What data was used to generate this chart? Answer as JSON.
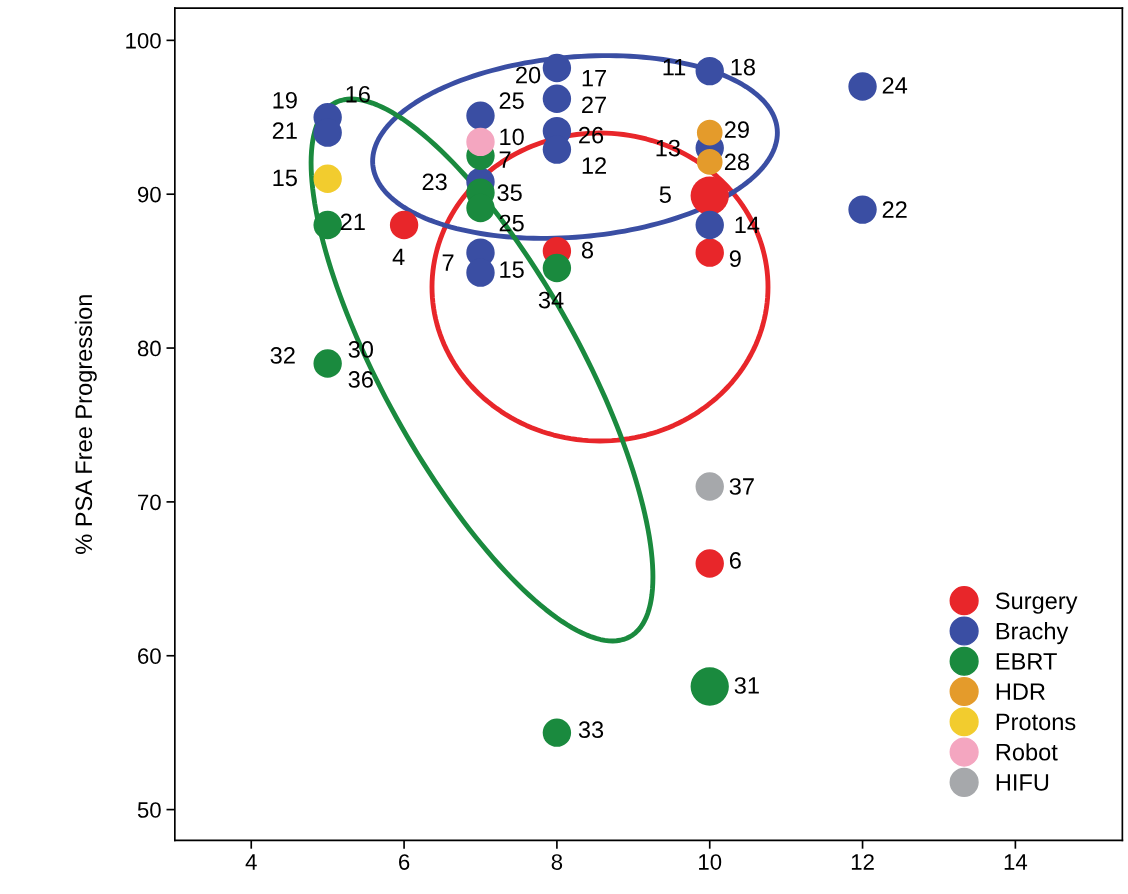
{
  "chart_data": {
    "type": "bubble",
    "ylabel": "% PSA Free Progression",
    "xlim": [
      3.0,
      15.4
    ],
    "ylim": [
      48,
      102.1
    ],
    "xticks": [
      4,
      6,
      8,
      10,
      12,
      14
    ],
    "yticks": [
      50,
      60,
      70,
      80,
      90,
      100
    ],
    "grid": false,
    "legend": "bottom right",
    "marker": "circle",
    "series": [
      {
        "name": "Surgery",
        "color": "#e8262a",
        "x": [
          6,
          8,
          10,
          10,
          10
        ],
        "values": [
          88,
          86.3,
          89.9,
          86.2,
          66
        ],
        "sizes": [
          0.55,
          0.55,
          1,
          0.55,
          0.55
        ]
      },
      {
        "name": "Brachy",
        "color": "#3a4ea3",
        "x": [
          5,
          5,
          7,
          7,
          7,
          7,
          8,
          8,
          8,
          8,
          10,
          10,
          10,
          12,
          12
        ],
        "values": [
          95,
          94,
          95.1,
          90.8,
          86.2,
          84.9,
          98.2,
          96.2,
          94.1,
          92.9,
          98,
          93,
          88,
          97,
          89
        ],
        "sizes": [
          0.55,
          0.55,
          0.55,
          0.55,
          0.55,
          0.55,
          0.55,
          0.55,
          0.55,
          0.55,
          0.55,
          0.55,
          0.55,
          0.55,
          0.55
        ]
      },
      {
        "name": "EBRT",
        "color": "#1a8a3e",
        "x": [
          5,
          5,
          7,
          7,
          7,
          8,
          10,
          8
        ],
        "values": [
          88,
          79,
          92.5,
          90.1,
          89.1,
          85.2,
          58,
          55
        ],
        "sizes": [
          0.55,
          0.55,
          0.55,
          0.55,
          0.55,
          0.55,
          1,
          0.55
        ]
      },
      {
        "name": "HDR",
        "color": "#e49b2b",
        "x": [
          10,
          10
        ],
        "values": [
          94,
          92.1
        ],
        "sizes": [
          0.45,
          0.45
        ]
      },
      {
        "name": "Protons",
        "color": "#f2cc2e",
        "x": [
          5
        ],
        "values": [
          91
        ],
        "sizes": [
          0.55
        ]
      },
      {
        "name": "Robot",
        "color": "#f4a6c0",
        "x": [
          7
        ],
        "values": [
          93.4
        ],
        "sizes": [
          0.55
        ]
      },
      {
        "name": "HIFU",
        "color": "#a6a8ab",
        "x": [
          10
        ],
        "values": [
          71
        ],
        "sizes": [
          0.55
        ]
      }
    ],
    "annotations": [
      {
        "text": "19",
        "x": 5,
        "y": 95
      },
      {
        "text": "16",
        "x": 5,
        "y": 95
      },
      {
        "text": "21",
        "x": 5,
        "y": 94
      },
      {
        "text": "15",
        "x": 5,
        "y": 91
      },
      {
        "text": "21",
        "x": 5,
        "y": 88
      },
      {
        "text": "4",
        "x": 6,
        "y": 88
      },
      {
        "text": "32",
        "x": 5,
        "y": 79
      },
      {
        "text": "30",
        "x": 5,
        "y": 79
      },
      {
        "text": "36",
        "x": 5,
        "y": 79
      },
      {
        "text": "25",
        "x": 7,
        "y": 95.1
      },
      {
        "text": "10",
        "x": 7,
        "y": 93.4
      },
      {
        "text": "7",
        "x": 7,
        "y": 92.5
      },
      {
        "text": "23",
        "x": 7,
        "y": 90.8
      },
      {
        "text": "35",
        "x": 7,
        "y": 90.1
      },
      {
        "text": "25",
        "x": 7,
        "y": 89.1
      },
      {
        "text": "7",
        "x": 7,
        "y": 86.2
      },
      {
        "text": "15",
        "x": 7,
        "y": 84.9
      },
      {
        "text": "8",
        "x": 8,
        "y": 86.3
      },
      {
        "text": "34",
        "x": 8,
        "y": 85.2
      },
      {
        "text": "20",
        "x": 8,
        "y": 98.2
      },
      {
        "text": "17",
        "x": 8,
        "y": 98.2
      },
      {
        "text": "27",
        "x": 8,
        "y": 96.2
      },
      {
        "text": "26",
        "x": 8,
        "y": 94.1
      },
      {
        "text": "12",
        "x": 8,
        "y": 92.9
      },
      {
        "text": "11",
        "x": 10,
        "y": 98
      },
      {
        "text": "18",
        "x": 10,
        "y": 98
      },
      {
        "text": "29",
        "x": 10,
        "y": 94
      },
      {
        "text": "13",
        "x": 10,
        "y": 93
      },
      {
        "text": "28",
        "x": 10,
        "y": 92.1
      },
      {
        "text": "5",
        "x": 10,
        "y": 89.9
      },
      {
        "text": "14",
        "x": 10,
        "y": 88
      },
      {
        "text": "9",
        "x": 10,
        "y": 86.2
      },
      {
        "text": "22",
        "x": 12,
        "y": 89
      },
      {
        "text": "24",
        "x": 12,
        "y": 97
      },
      {
        "text": "37",
        "x": 10,
        "y": 71
      },
      {
        "text": "6",
        "x": 10,
        "y": 66
      },
      {
        "text": "31",
        "x": 10,
        "y": 58
      },
      {
        "text": "33",
        "x": 8,
        "y": 55
      }
    ]
  }
}
